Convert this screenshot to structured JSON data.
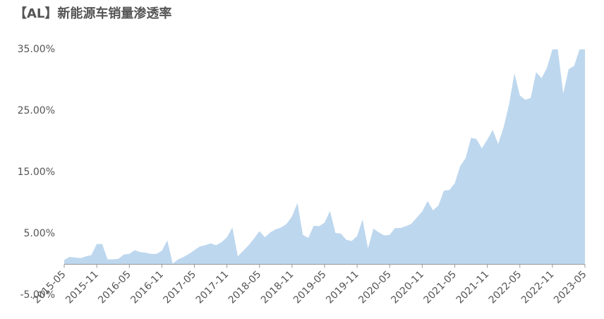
{
  "chart_data": {
    "type": "area",
    "title": "【AL】新能源车销量渗透率",
    "categories": [
      "2015-05",
      null,
      null,
      null,
      null,
      null,
      "2015-11",
      null,
      null,
      null,
      null,
      null,
      "2016-05",
      null,
      null,
      null,
      null,
      null,
      "2016-11",
      null,
      null,
      null,
      null,
      null,
      "2017-05",
      null,
      null,
      null,
      null,
      null,
      "2017-11",
      null,
      null,
      null,
      null,
      null,
      "2018-05",
      null,
      null,
      null,
      null,
      null,
      "2018-11",
      null,
      null,
      null,
      null,
      null,
      "2019-05",
      null,
      null,
      null,
      null,
      null,
      "2019-11",
      null,
      null,
      null,
      null,
      null,
      "2020-05",
      null,
      null,
      null,
      null,
      null,
      "2020-11",
      null,
      null,
      null,
      null,
      null,
      "2021-05",
      null,
      null,
      null,
      null,
      null,
      "2021-11",
      null,
      null,
      null,
      null,
      null,
      "2022-05",
      null,
      null,
      null,
      null,
      null,
      "2022-11",
      null,
      null,
      null,
      null,
      null,
      "2023-05"
    ],
    "values": [
      0.7,
      1.2,
      1.1,
      1.0,
      1.3,
      1.5,
      3.3,
      3.3,
      0.8,
      0.8,
      0.9,
      1.6,
      1.7,
      2.3,
      2.0,
      1.9,
      1.7,
      1.7,
      2.2,
      3.9,
      0.1,
      0.8,
      1.2,
      1.7,
      2.3,
      2.9,
      3.1,
      3.4,
      3.1,
      3.6,
      4.4,
      6.0,
      1.3,
      2.2,
      3.1,
      4.2,
      5.4,
      4.4,
      5.2,
      5.7,
      6.0,
      6.6,
      7.8,
      10.0,
      4.8,
      4.3,
      6.3,
      6.2,
      6.8,
      8.7,
      5.1,
      5.0,
      4.0,
      3.8,
      4.6,
      7.3,
      2.6,
      5.8,
      5.2,
      4.7,
      4.8,
      5.9,
      5.9,
      6.2,
      6.6,
      7.6,
      8.6,
      10.3,
      8.8,
      9.6,
      12.0,
      12.1,
      13.2,
      16.0,
      17.3,
      20.6,
      20.4,
      18.9,
      20.3,
      21.9,
      19.6,
      22.3,
      26.0,
      31.1,
      27.5,
      26.8,
      27.1,
      31.3,
      30.3,
      32.0,
      35,
      35,
      27.8,
      31.8,
      32.3,
      35,
      35
    ],
    "color": "#bdd7ee",
    "ylim": [
      -5,
      35
    ],
    "yticks": [
      {
        "value": -5,
        "label": "-5.00%"
      },
      {
        "value": 5,
        "label": "5.00%"
      },
      {
        "value": 15,
        "label": "15.00%"
      },
      {
        "value": 25,
        "label": "25.00%"
      },
      {
        "value": 35,
        "label": "35.00%"
      }
    ]
  }
}
